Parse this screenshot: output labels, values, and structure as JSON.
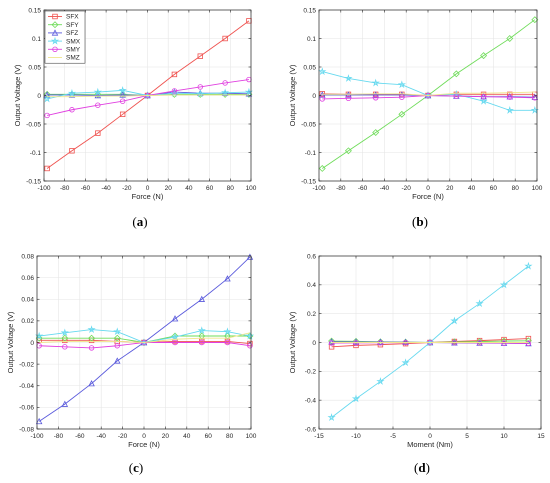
{
  "colors": {
    "SFX": "#ef5350",
    "SFY": "#6fdc5a",
    "SFZ": "#5a5adc",
    "SMX": "#66d9ef",
    "SMY": "#e040e0",
    "SMZ": "#f0e68c"
  },
  "chart_data": [
    {
      "id": "a",
      "type": "line",
      "caption": "a",
      "xlabel": "Force (N)",
      "ylabel": "Output Voltage (V)",
      "xlim": [
        -100,
        100
      ],
      "ylim": [
        -0.15,
        0.15
      ],
      "xticks": [
        -100,
        -80,
        -60,
        -40,
        -20,
        0,
        20,
        40,
        60,
        80,
        100
      ],
      "yticks": [
        -0.15,
        -0.1,
        -0.05,
        0,
        0.05,
        0.1,
        0.15
      ],
      "ytick_labels": [
        "-0.15",
        "-0.1",
        "-0.05",
        "0",
        "0.05",
        "0.1",
        "0.15"
      ],
      "legend": true,
      "legend_position": "top-left",
      "grid": true,
      "x": [
        -97,
        -73,
        -48,
        -24,
        0,
        26,
        51,
        75,
        98
      ],
      "series": [
        {
          "name": "SFX",
          "marker": "square",
          "values": [
            -0.128,
            -0.097,
            -0.066,
            -0.033,
            0,
            0.037,
            0.069,
            0.1,
            0.131
          ]
        },
        {
          "name": "SFY",
          "marker": "diamond",
          "values": [
            0.002,
            0.002,
            0.002,
            0.002,
            0,
            0.002,
            0.002,
            0.002,
            0.002
          ]
        },
        {
          "name": "SFZ",
          "marker": "triangle",
          "values": [
            0.001,
            0.001,
            0.0,
            0.001,
            0,
            0.006,
            0.004,
            0.004,
            0.003
          ]
        },
        {
          "name": "SMX",
          "marker": "star",
          "values": [
            -0.006,
            0.004,
            0.006,
            0.009,
            0,
            0.004,
            0.003,
            0.005,
            0.006
          ]
        },
        {
          "name": "SMY",
          "marker": "circle",
          "values": [
            -0.035,
            -0.025,
            -0.017,
            -0.01,
            0,
            0.008,
            0.015,
            0.022,
            0.028
          ]
        },
        {
          "name": "SMZ",
          "marker": "none",
          "values": [
            -0.002,
            -0.002,
            -0.001,
            -0.001,
            0,
            0.001,
            0.001,
            0.001,
            0.001
          ]
        }
      ]
    },
    {
      "id": "b",
      "type": "line",
      "caption": "b",
      "xlabel": "Force (N)",
      "ylabel": "Output Voltage (V)",
      "xlim": [
        -100,
        100
      ],
      "ylim": [
        -0.15,
        0.15
      ],
      "xticks": [
        -100,
        -80,
        -60,
        -40,
        -20,
        0,
        20,
        40,
        60,
        80,
        100
      ],
      "yticks": [
        -0.15,
        -0.1,
        -0.05,
        0,
        0.05,
        0.1,
        0.15
      ],
      "ytick_labels": [
        "-0.15",
        "-0.1",
        "-0.05",
        "0",
        "0.05",
        "0.1",
        "0.15"
      ],
      "legend": false,
      "grid": true,
      "x": [
        -97,
        -73,
        -48,
        -24,
        0,
        26,
        51,
        75,
        98
      ],
      "series": [
        {
          "name": "SFX",
          "marker": "square",
          "values": [
            0.003,
            0.002,
            0.002,
            0.002,
            0,
            0.002,
            0.002,
            0.002,
            0.002
          ]
        },
        {
          "name": "SFY",
          "marker": "diamond",
          "values": [
            -0.128,
            -0.097,
            -0.065,
            -0.033,
            0,
            0.038,
            0.07,
            0.1,
            0.133
          ]
        },
        {
          "name": "SFZ",
          "marker": "triangle",
          "values": [
            0.001,
            0.001,
            0.001,
            0.001,
            0,
            -0.001,
            -0.002,
            -0.002,
            -0.003
          ]
        },
        {
          "name": "SMX",
          "marker": "star",
          "values": [
            0.042,
            0.03,
            0.022,
            0.019,
            0,
            0.002,
            -0.01,
            -0.026,
            -0.026
          ]
        },
        {
          "name": "SMY",
          "marker": "circle",
          "values": [
            -0.006,
            -0.005,
            -0.004,
            -0.003,
            0,
            -0.001,
            -0.002,
            -0.003,
            -0.004
          ]
        },
        {
          "name": "SMZ",
          "marker": "none",
          "values": [
            0.002,
            0.002,
            0.003,
            0.003,
            0,
            0.004,
            0.004,
            0.005,
            0.006
          ]
        }
      ]
    },
    {
      "id": "c",
      "type": "line",
      "caption": "c",
      "xlabel": "Force (N)",
      "ylabel": "Output Voltage (V)",
      "xlim": [
        -100,
        100
      ],
      "ylim": [
        -0.08,
        0.08
      ],
      "xticks": [
        -100,
        -80,
        -60,
        -40,
        -20,
        0,
        20,
        40,
        60,
        80,
        100
      ],
      "yticks": [
        -0.08,
        -0.06,
        -0.04,
        -0.02,
        0,
        0.02,
        0.04,
        0.06,
        0.08
      ],
      "ytick_labels": [
        "-0.08",
        "-0.06",
        "-0.04",
        "-0.02",
        "0",
        "0.02",
        "0.04",
        "0.06",
        "0.08"
      ],
      "legend": false,
      "grid": true,
      "x": [
        -98,
        -74,
        -49,
        -25,
        0,
        29,
        54,
        78,
        99
      ],
      "series": [
        {
          "name": "SFX",
          "marker": "square",
          "values": [
            0.002,
            0.002,
            0.002,
            0.001,
            0,
            0.001,
            0.001,
            0.001,
            -0.001
          ]
        },
        {
          "name": "SFY",
          "marker": "diamond",
          "values": [
            0.004,
            0.004,
            0.004,
            0.004,
            0,
            0.006,
            0.006,
            0.006,
            0.006
          ]
        },
        {
          "name": "SFZ",
          "marker": "triangle",
          "values": [
            -0.073,
            -0.057,
            -0.038,
            -0.017,
            0,
            0.022,
            0.04,
            0.059,
            0.079
          ]
        },
        {
          "name": "SMX",
          "marker": "star",
          "values": [
            0.006,
            0.009,
            0.012,
            0.01,
            0,
            0.005,
            0.011,
            0.01,
            0.006
          ]
        },
        {
          "name": "SMY",
          "marker": "circle",
          "values": [
            -0.003,
            -0.004,
            -0.005,
            -0.003,
            0,
            0.0,
            0.0,
            0.0,
            -0.003
          ]
        },
        {
          "name": "SMZ",
          "marker": "none",
          "values": [
            0.0,
            0.001,
            0.001,
            0.001,
            0,
            0.003,
            0.004,
            0.004,
            0.009
          ]
        }
      ]
    },
    {
      "id": "d",
      "type": "line",
      "caption": "d",
      "xlabel": "Moment (Nm)",
      "ylabel": "Output Voltage (V)",
      "xlim": [
        -15,
        15
      ],
      "ylim": [
        -0.6,
        0.6
      ],
      "xticks": [
        -15,
        -10,
        -5,
        0,
        5,
        10,
        15
      ],
      "yticks": [
        -0.6,
        -0.4,
        -0.2,
        0,
        0.2,
        0.4,
        0.6
      ],
      "ytick_labels": [
        "-0.6",
        "-0.4",
        "-0.2",
        "0",
        "0.2",
        "0.4",
        "0.6"
      ],
      "legend": false,
      "grid": true,
      "x": [
        -13.3,
        -10,
        -6.7,
        -3.3,
        0,
        3.3,
        6.7,
        10,
        13.3
      ],
      "series": [
        {
          "name": "SFX",
          "marker": "square",
          "values": [
            -0.03,
            -0.02,
            -0.015,
            -0.008,
            0,
            0.007,
            0.013,
            0.02,
            0.027
          ]
        },
        {
          "name": "SFY",
          "marker": "diamond",
          "values": [
            0.01,
            0.008,
            0.005,
            0.003,
            0,
            0.004,
            0.006,
            0.01,
            0.012
          ]
        },
        {
          "name": "SFZ",
          "marker": "triangle",
          "values": [
            0.005,
            0.004,
            0.003,
            0.002,
            0,
            -0.002,
            -0.004,
            -0.005,
            -0.007
          ]
        },
        {
          "name": "SMX",
          "marker": "star",
          "values": [
            -0.52,
            -0.39,
            -0.27,
            -0.14,
            0,
            0.15,
            0.27,
            0.4,
            0.53
          ]
        },
        {
          "name": "SMY",
          "marker": "circle",
          "values": [
            -0.004,
            -0.003,
            -0.002,
            -0.001,
            0,
            -0.001,
            -0.003,
            -0.004,
            -0.006
          ]
        },
        {
          "name": "SMZ",
          "marker": "none",
          "values": [
            0.0,
            0.0,
            0.0,
            0.0,
            0,
            0.0,
            0.0,
            0.0,
            0.0
          ]
        }
      ]
    }
  ]
}
